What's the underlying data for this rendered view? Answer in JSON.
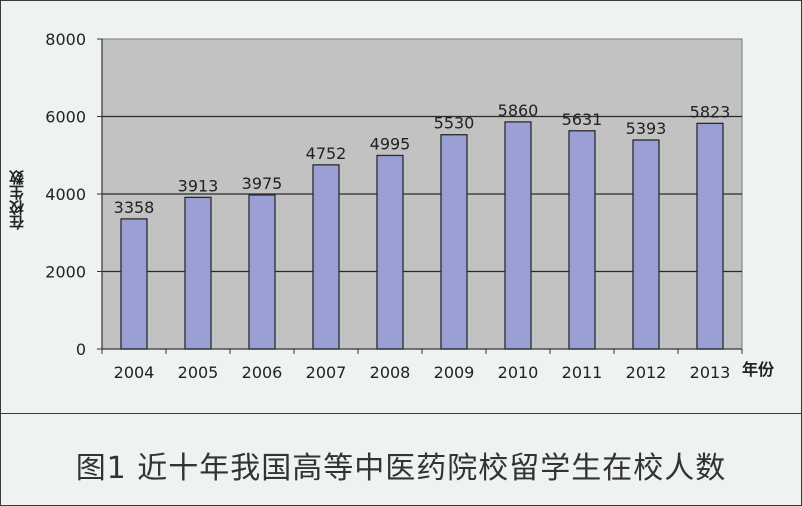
{
  "chart_data": {
    "type": "bar",
    "categories": [
      "2004",
      "2005",
      "2006",
      "2007",
      "2008",
      "2009",
      "2010",
      "2011",
      "2012",
      "2013"
    ],
    "values": [
      3358,
      3913,
      3975,
      4752,
      4995,
      5530,
      5860,
      5631,
      5393,
      5823
    ],
    "data_labels": [
      "3358",
      "3913",
      "3975",
      "4752",
      "4995",
      "5530",
      "5860",
      "5631",
      "5393",
      "5823"
    ],
    "title": "图1 近十年我国高等中医药院校留学生在校人数",
    "xlabel": "年份",
    "ylabel": "在校生数",
    "ylim": [
      0,
      8000
    ],
    "yticks": [
      "0",
      "2000",
      "4000",
      "6000",
      "8000"
    ],
    "grid": true,
    "legend": "none",
    "colors": {
      "bar": "#9aa0d3",
      "bar_stroke": "#2b2b2b",
      "plot_bg": "#c1c2c1",
      "grid": "#2b2b2b"
    }
  }
}
